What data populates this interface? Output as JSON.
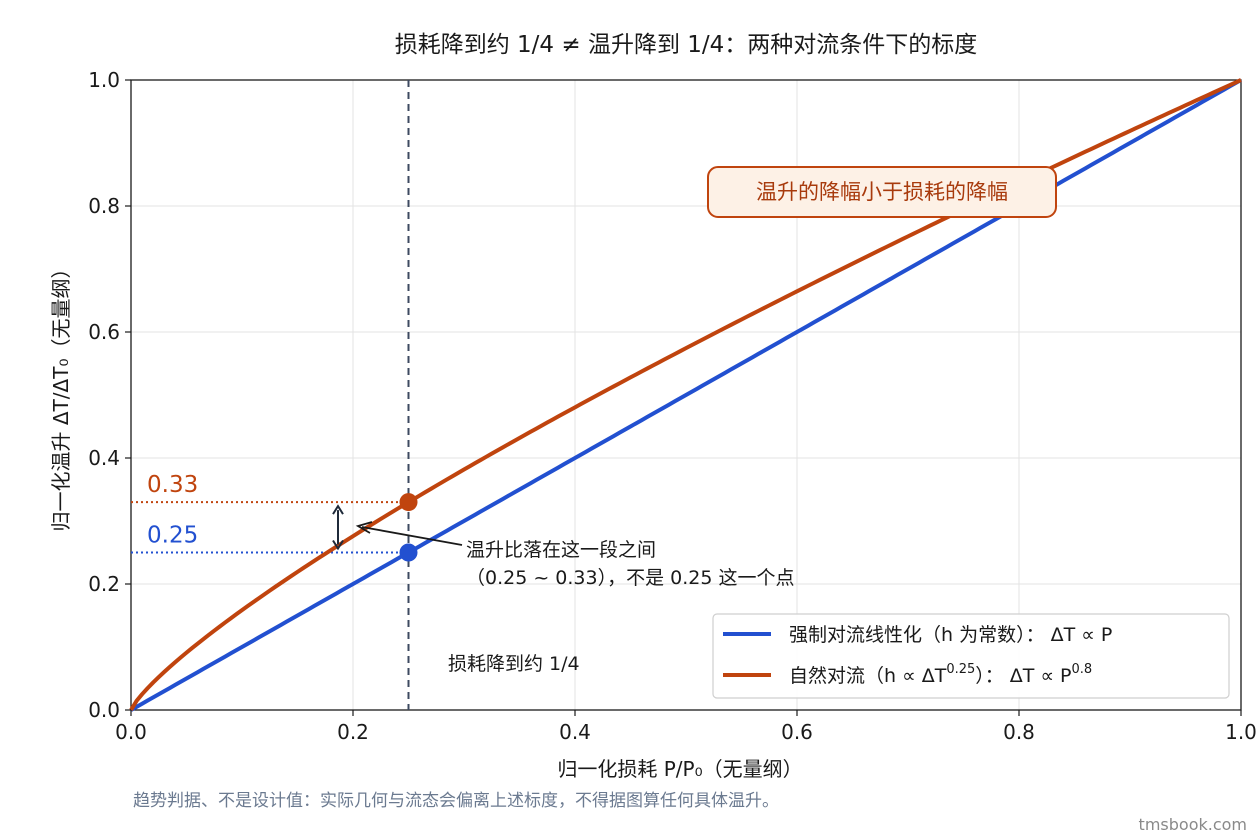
{
  "chart_data": {
    "type": "line",
    "title": "损耗降到约 1/4 ≠ 温升降到 1/4：两种对流条件下的标度",
    "xlabel": "归一化损耗 P/P₀（无量纲）",
    "ylabel": "归一化温升 ΔT/ΔT₀（无量纲）",
    "xlim": [
      0,
      1
    ],
    "ylim": [
      0,
      1
    ],
    "x_ticks": [
      "0.0",
      "0.2",
      "0.4",
      "0.6",
      "0.8",
      "1.0"
    ],
    "y_ticks": [
      "0.0",
      "0.2",
      "0.4",
      "0.6",
      "0.8",
      "1.0"
    ],
    "grid": true,
    "legend_position": "lower-right",
    "series": [
      {
        "name": "强制对流线性化（h 为常数）：ΔT ∝ P",
        "legend_main": "强制对流线性化（h 为常数）： ΔT ∝ P",
        "exponent": 1.0,
        "color": "#2250d0",
        "x": [
          0,
          0.25,
          0.5,
          0.75,
          1.0
        ],
        "y": [
          0,
          0.25,
          0.5,
          0.75,
          1.0
        ]
      },
      {
        "name": "自然对流（h ∝ ΔT^0.25）：ΔT ∝ P^0.8",
        "legend_main": "自然对流（h ∝ ΔT",
        "legend_sup1": "0.25",
        "legend_mid": "）： ΔT ∝ P",
        "legend_sup2": "0.8",
        "exponent": 0.8,
        "color": "#c0440e",
        "x": [
          0,
          0.1,
          0.25,
          0.5,
          0.75,
          1.0
        ],
        "y": [
          0,
          0.158,
          0.33,
          0.574,
          0.794,
          1.0
        ]
      }
    ],
    "reference_x": 0.25,
    "reference_label": "损耗降到约 1/4",
    "points": [
      {
        "x": 0.25,
        "y": 0.25,
        "label": "0.25",
        "color": "#2250d0"
      },
      {
        "x": 0.25,
        "y": 0.33,
        "label": "0.33",
        "color": "#c0440e"
      }
    ],
    "annotations": {
      "callout": "温升的降幅小于损耗的降幅",
      "arrow_line1": "温升比落在这一段之间",
      "arrow_line2": "（0.25 ~ 0.33），不是 0.25 这一个点"
    },
    "footnote": "趋势判据、不是设计值：实际几何与流态会偏离上述标度，不得据图算任何具体温升。",
    "watermark": "tmsbook.com"
  }
}
